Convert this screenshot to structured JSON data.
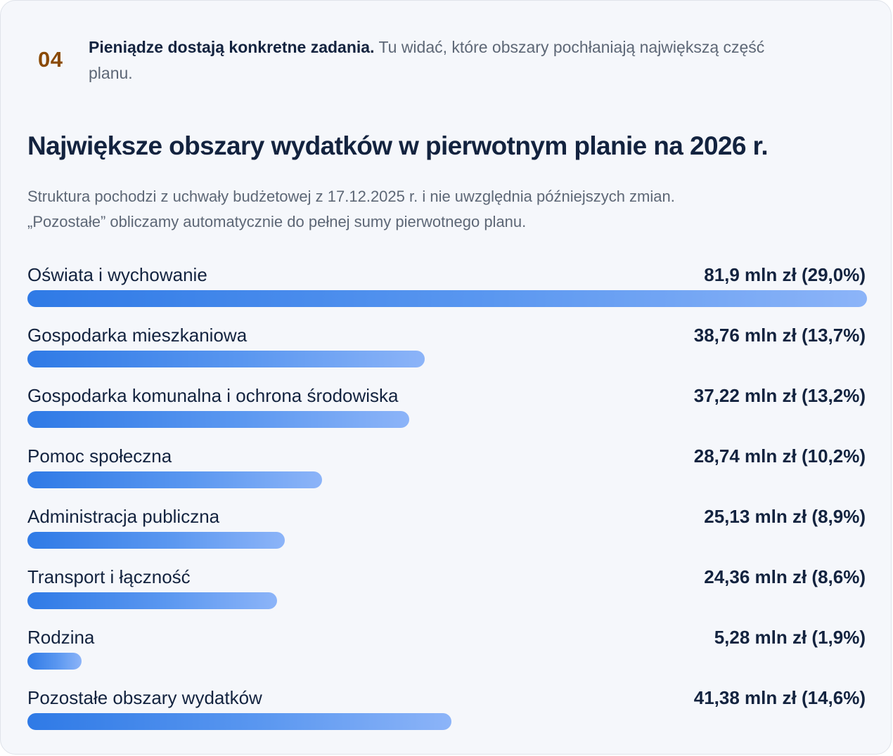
{
  "intro": {
    "step": "04",
    "lead_bold": "Pieniądze dostają konkretne zadania.",
    "lead_rest": " Tu widać, które obszary pochłaniają największą część planu."
  },
  "chart_data": {
    "type": "bar",
    "orientation": "horizontal",
    "title": "Największe obszary wydatków w pierwotnym planie na 2026 r.",
    "subtitle_line1": "Struktura pochodzi z uchwały budżetowej z 17.12.2025 r. i nie uwzględnia późniejszych zmian.",
    "subtitle_line2": "„Pozostałe” obliczamy automatycznie do pełnej sumy pierwotnego planu.",
    "unit": "mln zł",
    "categories": [
      "Oświata i wychowanie",
      "Gospodarka mieszkaniowa",
      "Gospodarka komunalna i ochrona środowiska",
      "Pomoc społeczna",
      "Administracja publiczna",
      "Transport i łączność",
      "Rodzina",
      "Pozostałe obszary wydatków"
    ],
    "values": [
      81.9,
      38.76,
      37.22,
      28.74,
      25.13,
      24.36,
      5.28,
      41.38
    ],
    "shares_percent": [
      29.0,
      13.7,
      13.2,
      10.2,
      8.9,
      8.6,
      1.9,
      14.6
    ],
    "value_labels": [
      "81,9 mln zł (29,0%)",
      "38,76 mln zł (13,7%)",
      "37,22 mln zł (13,2%)",
      "28,74 mln zł (10,2%)",
      "25,13 mln zł (8,9%)",
      "24,36 mln zł (8,6%)",
      "5,28 mln zł (1,9%)",
      "41,38 mln zł (14,6%)"
    ],
    "grid": false,
    "legend": "none",
    "colors": {
      "bar_start": "#2f7ae6",
      "bar_end": "#8cb4f8"
    }
  }
}
